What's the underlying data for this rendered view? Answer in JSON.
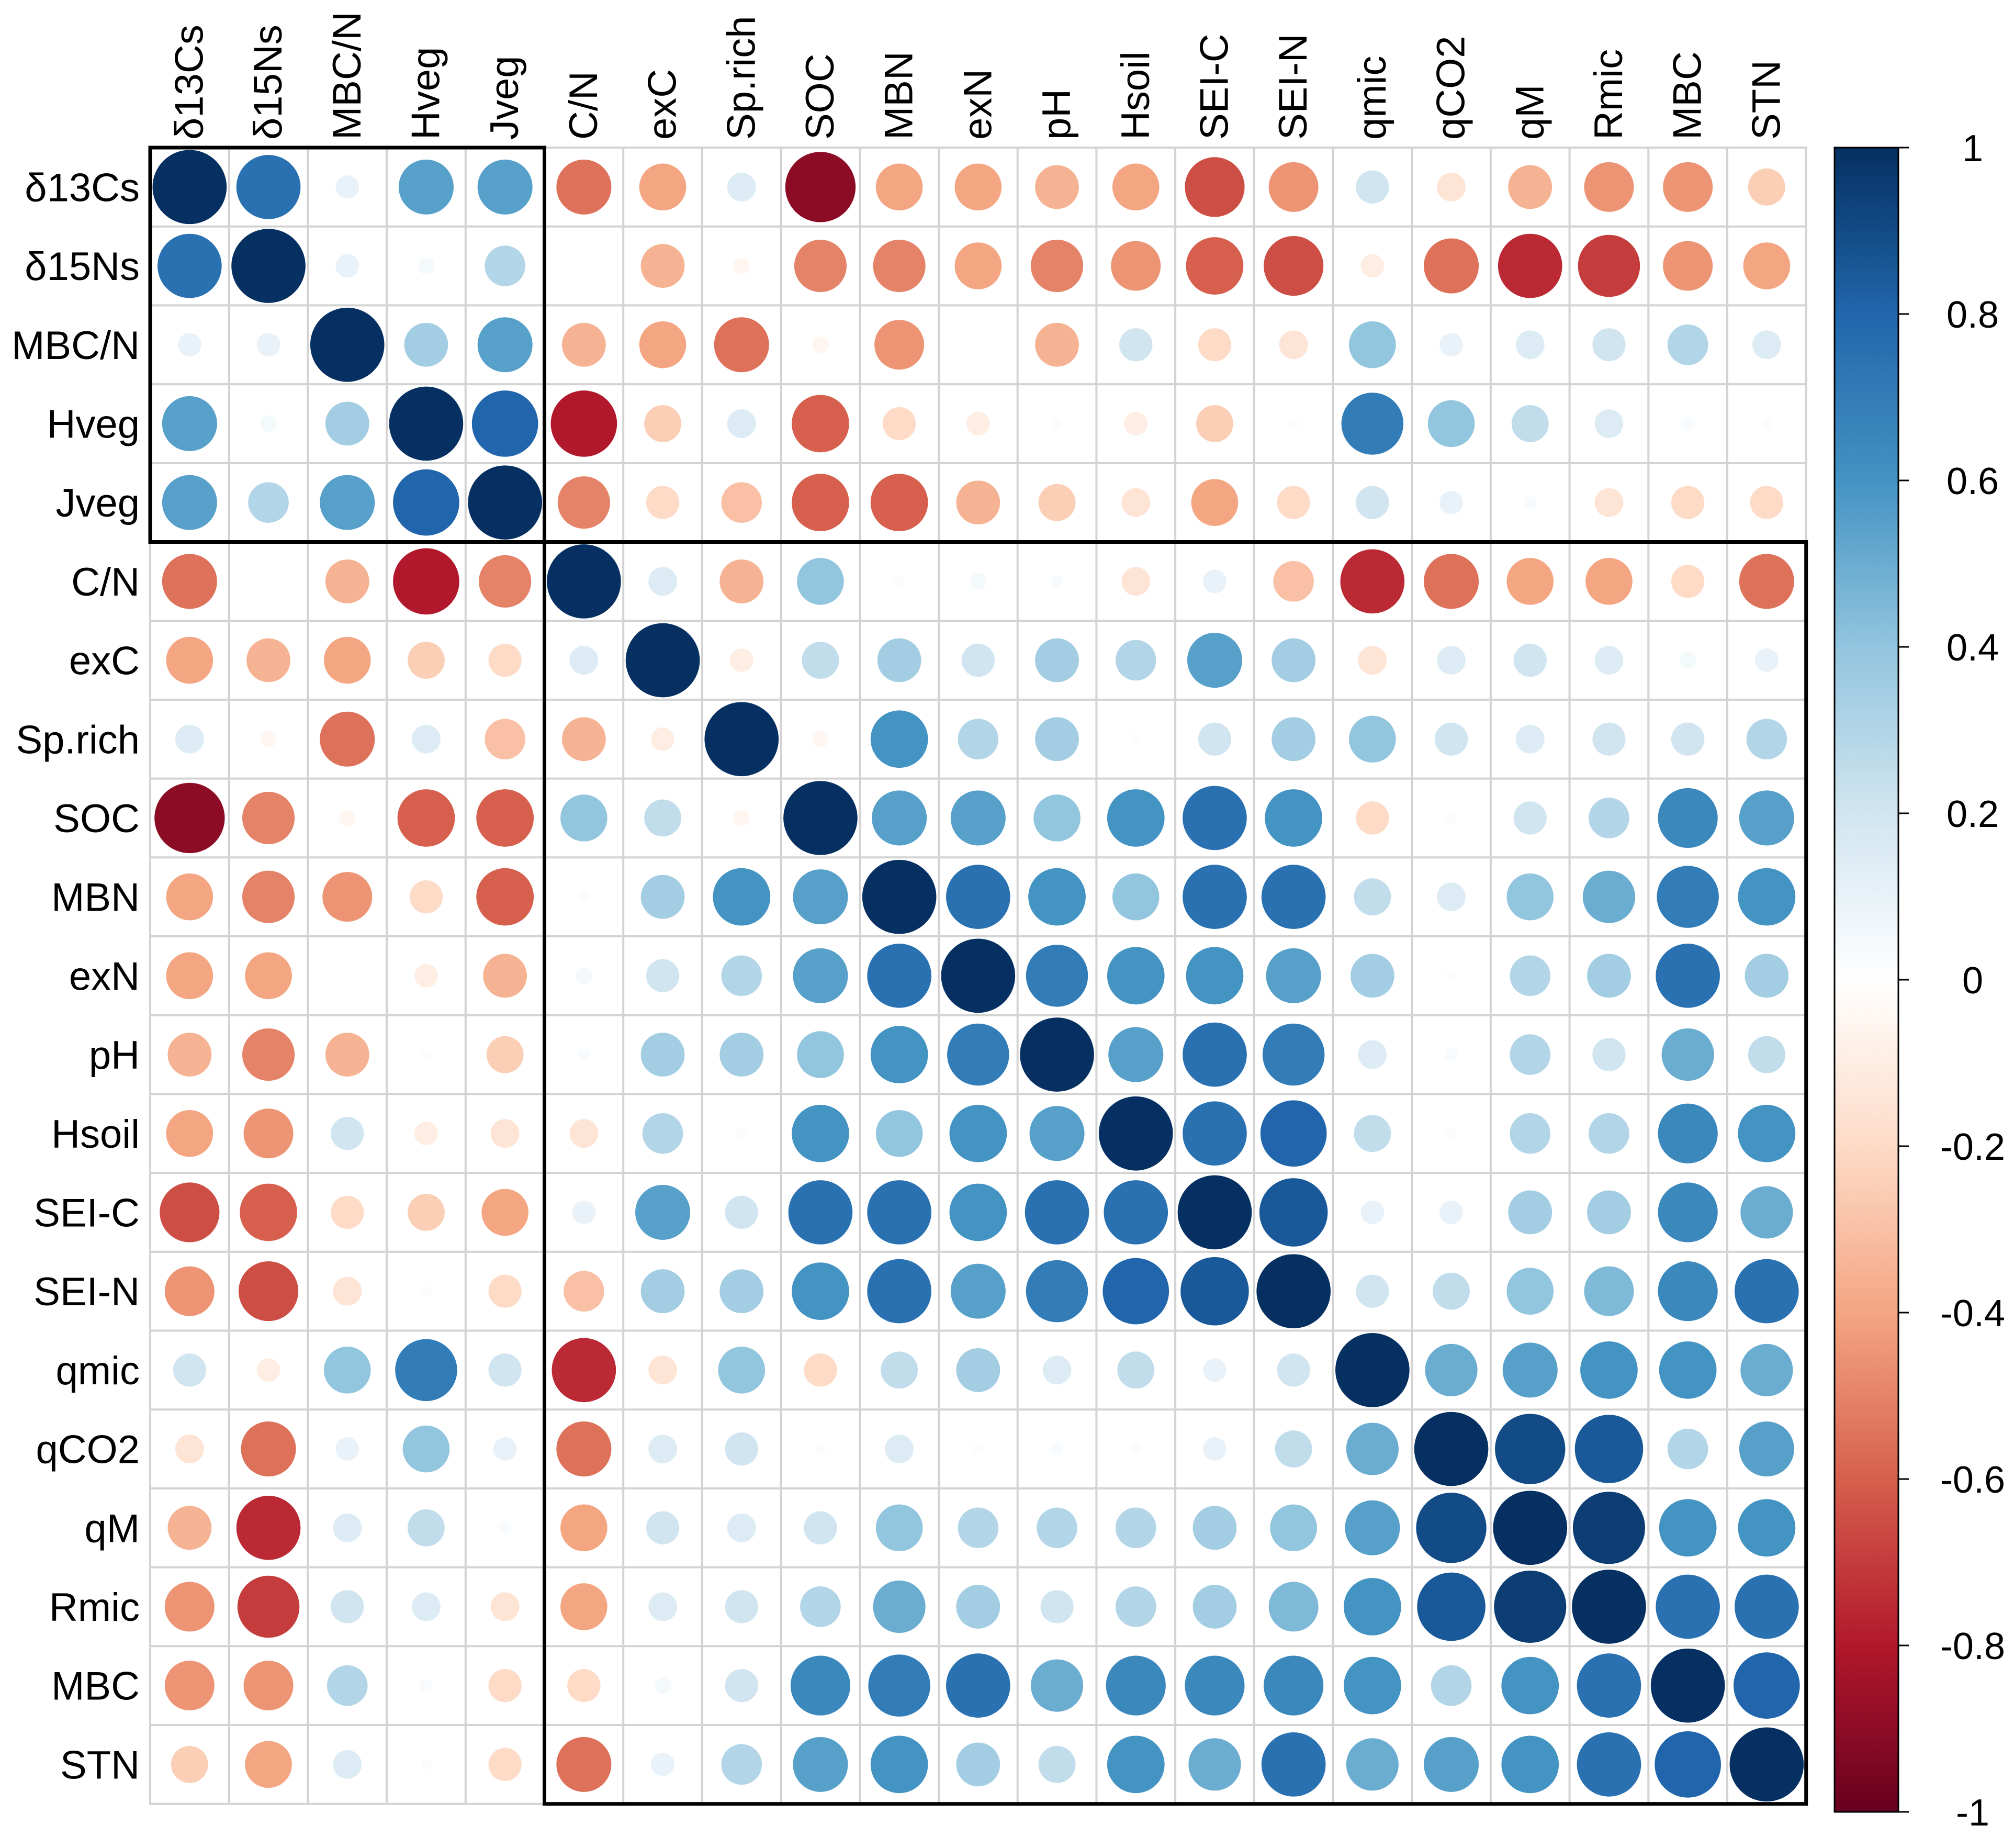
{
  "chart_data": {
    "type": "heatmap",
    "subtype": "correlation-circle-matrix",
    "title": "",
    "variables": [
      "δ13Cs",
      "δ15Ns",
      "MBC/N",
      "Hveg",
      "Jveg",
      "C/N",
      "exC",
      "Sp.rich",
      "SOC",
      "MBN",
      "exN",
      "pH",
      "Hsoil",
      "SEI-C",
      "SEI-N",
      "qmic",
      "qCO2",
      "qM",
      "Rmic",
      "MBC",
      "STN"
    ],
    "matrix": [
      [
        1,
        0.75,
        0.1,
        0.55,
        0.55,
        -0.55,
        -0.4,
        0.15,
        -0.9,
        -0.4,
        -0.4,
        -0.35,
        -0.4,
        -0.65,
        -0.45,
        0.2,
        -0.15,
        -0.35,
        -0.45,
        -0.45,
        -0.25
      ],
      [
        0.75,
        1,
        0.1,
        0.05,
        0.3,
        0,
        -0.35,
        -0.05,
        -0.5,
        -0.5,
        -0.4,
        -0.5,
        -0.45,
        -0.6,
        -0.65,
        -0.1,
        -0.55,
        -0.75,
        -0.7,
        -0.45,
        -0.4
      ],
      [
        0.1,
        0.1,
        1,
        0.35,
        0.55,
        -0.35,
        -0.4,
        -0.55,
        -0.05,
        -0.45,
        0,
        -0.35,
        0.2,
        -0.2,
        -0.15,
        0.4,
        0.1,
        0.15,
        0.2,
        0.3,
        0.15
      ],
      [
        0.55,
        0.05,
        0.35,
        1,
        0.8,
        -0.8,
        -0.25,
        0.15,
        -0.6,
        -0.2,
        -0.1,
        0.02,
        -0.1,
        -0.25,
        0.02,
        0.7,
        0.4,
        0.25,
        0.15,
        0.03,
        0.02
      ],
      [
        0.55,
        0.3,
        0.55,
        0.8,
        1,
        -0.5,
        -0.2,
        -0.3,
        -0.6,
        -0.6,
        -0.35,
        -0.25,
        -0.15,
        -0.4,
        -0.2,
        0.2,
        0.1,
        0.03,
        -0.15,
        -0.2,
        -0.2
      ],
      [
        -0.55,
        0,
        -0.35,
        -0.8,
        -0.5,
        1,
        0.15,
        -0.35,
        0.4,
        0.02,
        0.05,
        0.03,
        -0.15,
        0.1,
        -0.3,
        -0.75,
        -0.55,
        -0.4,
        -0.4,
        -0.2,
        -0.55
      ],
      [
        -0.4,
        -0.35,
        -0.4,
        -0.25,
        -0.2,
        0.15,
        1,
        -0.1,
        0.25,
        0.35,
        0.2,
        0.35,
        0.3,
        0.55,
        0.35,
        -0.15,
        0.15,
        0.2,
        0.15,
        0.05,
        0.1
      ],
      [
        0.15,
        -0.05,
        -0.55,
        0.15,
        -0.3,
        -0.35,
        -0.1,
        1,
        -0.05,
        0.6,
        0.3,
        0.35,
        0.02,
        0.2,
        0.35,
        0.4,
        0.2,
        0.15,
        0.2,
        0.2,
        0.3
      ],
      [
        -0.9,
        -0.5,
        -0.05,
        -0.6,
        -0.6,
        0.4,
        0.25,
        -0.05,
        1,
        0.55,
        0.55,
        0.4,
        0.6,
        0.75,
        0.6,
        -0.2,
        0.02,
        0.2,
        0.3,
        0.65,
        0.55
      ],
      [
        -0.4,
        -0.5,
        -0.45,
        -0.2,
        -0.6,
        0.02,
        0.35,
        0.6,
        0.55,
        1,
        0.75,
        0.6,
        0.4,
        0.75,
        0.75,
        0.25,
        0.15,
        0.4,
        0.5,
        0.7,
        0.6
      ],
      [
        -0.4,
        -0.4,
        0,
        -0.1,
        -0.35,
        0.05,
        0.2,
        0.3,
        0.55,
        0.75,
        1,
        0.7,
        0.6,
        0.6,
        0.55,
        0.35,
        0.02,
        0.3,
        0.35,
        0.75,
        0.35
      ],
      [
        -0.35,
        -0.5,
        -0.35,
        0.02,
        -0.25,
        0.03,
        0.35,
        0.35,
        0.4,
        0.6,
        0.7,
        1,
        0.55,
        0.75,
        0.7,
        0.15,
        0.03,
        0.3,
        0.2,
        0.5,
        0.25
      ],
      [
        -0.4,
        -0.45,
        0.2,
        -0.1,
        -0.15,
        -0.15,
        0.3,
        0.02,
        0.6,
        0.4,
        0.6,
        0.55,
        1,
        0.75,
        0.8,
        0.25,
        0.02,
        0.3,
        0.3,
        0.65,
        0.6
      ],
      [
        -0.65,
        -0.6,
        -0.2,
        -0.25,
        -0.4,
        0.1,
        0.55,
        0.2,
        0.75,
        0.75,
        0.6,
        0.75,
        0.75,
        1,
        0.85,
        0.1,
        0.1,
        0.35,
        0.35,
        0.65,
        0.5
      ],
      [
        -0.45,
        -0.65,
        -0.15,
        0.02,
        -0.2,
        -0.3,
        0.35,
        0.35,
        0.6,
        0.75,
        0.55,
        0.7,
        0.8,
        0.85,
        1,
        0.2,
        0.25,
        0.4,
        0.45,
        0.65,
        0.75
      ],
      [
        0.2,
        -0.1,
        0.4,
        0.7,
        0.2,
        -0.75,
        -0.15,
        0.4,
        -0.2,
        0.25,
        0.35,
        0.15,
        0.25,
        0.1,
        0.2,
        1,
        0.5,
        0.55,
        0.6,
        0.6,
        0.5
      ],
      [
        -0.15,
        -0.55,
        0.1,
        0.4,
        0.1,
        -0.55,
        0.15,
        0.2,
        0.02,
        0.15,
        0.02,
        0.03,
        0.02,
        0.1,
        0.25,
        0.5,
        1,
        0.9,
        0.85,
        0.3,
        0.55
      ],
      [
        -0.35,
        -0.75,
        0.15,
        0.25,
        0.03,
        -0.4,
        0.2,
        0.15,
        0.2,
        0.4,
        0.3,
        0.3,
        0.3,
        0.35,
        0.4,
        0.55,
        0.9,
        1,
        0.95,
        0.6,
        0.6
      ],
      [
        -0.45,
        -0.7,
        0.2,
        0.15,
        -0.15,
        -0.4,
        0.15,
        0.2,
        0.3,
        0.5,
        0.35,
        0.2,
        0.3,
        0.35,
        0.45,
        0.6,
        0.85,
        0.95,
        1,
        0.75,
        0.75
      ],
      [
        -0.45,
        -0.45,
        0.3,
        0.03,
        -0.2,
        -0.2,
        0.05,
        0.2,
        0.65,
        0.7,
        0.75,
        0.5,
        0.65,
        0.65,
        0.65,
        0.6,
        0.3,
        0.6,
        0.75,
        1,
        0.8
      ],
      [
        -0.25,
        -0.4,
        0.15,
        0.02,
        -0.2,
        -0.55,
        0.1,
        0.3,
        0.55,
        0.6,
        0.35,
        0.25,
        0.6,
        0.5,
        0.75,
        0.5,
        0.55,
        0.6,
        0.75,
        0.8,
        1
      ]
    ],
    "clusters": [
      [
        0,
        4
      ],
      [
        5,
        20
      ]
    ],
    "colorbar_ticks": [
      "1",
      "0.8",
      "0.6",
      "0.4",
      "0.2",
      "0",
      "-0.2",
      "-0.4",
      "-0.6",
      "-0.8",
      "-1"
    ],
    "colorbar_values": [
      1,
      0.8,
      0.6,
      0.4,
      0.2,
      0,
      -0.2,
      -0.4,
      -0.6,
      -0.8,
      -1
    ],
    "value_range": [
      -1,
      1
    ],
    "palette": {
      "-1": "#67001F",
      "-0.8": "#B2182B",
      "-0.6": "#D6604D",
      "-0.4": "#F4A582",
      "-0.2": "#FDDBC7",
      "0": "#FFFFFF",
      "0.2": "#D1E5F0",
      "0.4": "#92C5DE",
      "0.6": "#4393C3",
      "0.8": "#2166AC",
      "1": "#053061"
    },
    "grid_color": "#D3D3D3",
    "legend": "right"
  }
}
